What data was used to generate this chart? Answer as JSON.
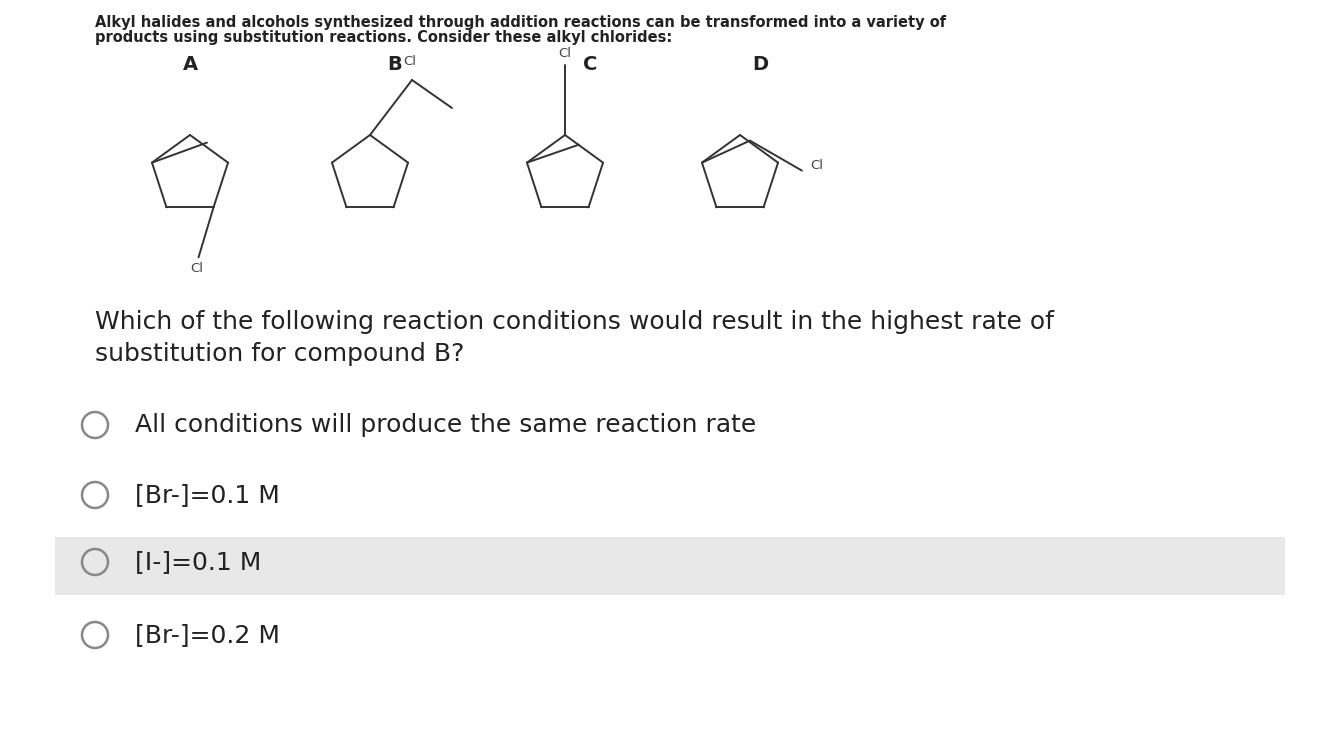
{
  "background_color": "#ffffff",
  "header_text_line1": "Alkyl halides and alcohols synthesized through addition reactions can be transformed into a variety of",
  "header_text_line2": "products using substitution reactions. Consider these alkyl chlorides:",
  "header_fontsize": 10.5,
  "compound_labels": [
    "A",
    "B",
    "C",
    "D"
  ],
  "question_text_line1": "Which of the following reaction conditions would result in the highest rate of",
  "question_text_line2": "substitution for compound B?",
  "question_fontsize": 18,
  "options": [
    {
      "text": "All conditions will produce the same reaction rate",
      "highlight": false
    },
    {
      "text": "[Br-]=0.1 M",
      "highlight": false
    },
    {
      "text": "[I-]=0.1 M",
      "highlight": true
    },
    {
      "text": "[Br-]=0.2 M",
      "highlight": false
    }
  ],
  "option_fontsize": 18,
  "highlight_color": "#e8e8e8",
  "line_color": "#333333",
  "text_color": "#222222",
  "circle_color": "#888888"
}
